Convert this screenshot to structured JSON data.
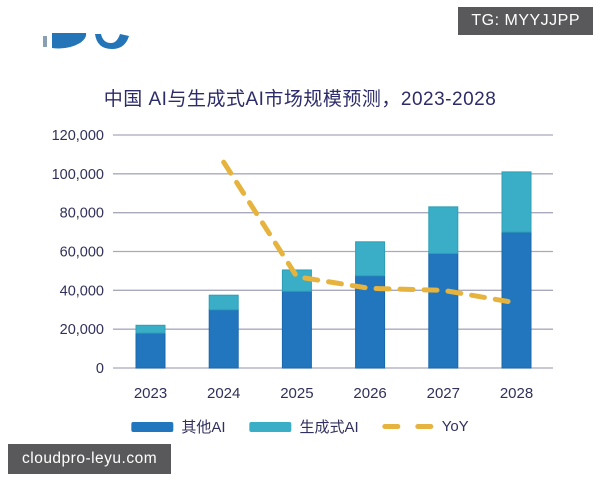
{
  "watermarks": {
    "top_right": "TG: MYYJJPP",
    "bottom_left": "cloudpro-leyu.com"
  },
  "logo": {
    "name": "IDC (cropped at top edge)",
    "color": "#2474b8",
    "accent_color": "#8b9fb3"
  },
  "chart_data": {
    "type": "bar",
    "stacked": true,
    "title": "中国 AI与生成式AI市场规模预测，2023-2028",
    "categories": [
      "2023",
      "2024",
      "2025",
      "2026",
      "2027",
      "2028"
    ],
    "series": [
      {
        "name": "其他AI",
        "type": "bar",
        "color": "#2176bd",
        "edge_color": "#1a68ab",
        "values": [
          18000,
          30000,
          39500,
          47500,
          59000,
          70000
        ]
      },
      {
        "name": "生成式AI",
        "type": "bar",
        "color": "#39aec6",
        "edge_color": "#2f9fb6",
        "values": [
          4000,
          7500,
          11000,
          17500,
          24000,
          31000
        ]
      },
      {
        "name": "YoY",
        "type": "line",
        "style": "dashed",
        "color": "#e6b33e",
        "axis": "secondary (unlabeled)",
        "values_primary_axis_equivalent": [
          null,
          106000,
          47000,
          41000,
          40000,
          33500
        ],
        "yoy_percent_estimated": [
          null,
          70,
          35,
          29,
          28,
          22
        ]
      }
    ],
    "stack_totals": [
      22000,
      37500,
      50500,
      65000,
      83000,
      101000
    ],
    "ylim": [
      0,
      120000
    ],
    "ytick_interval": 20000,
    "ytick_labels": [
      "0",
      "20,000",
      "40,000",
      "60,000",
      "80,000",
      "100,000",
      "120,000"
    ],
    "grid": true,
    "gridline_color": "#a9a9bd",
    "tick_label_color": "#30305a",
    "legend_position": "bottom"
  }
}
